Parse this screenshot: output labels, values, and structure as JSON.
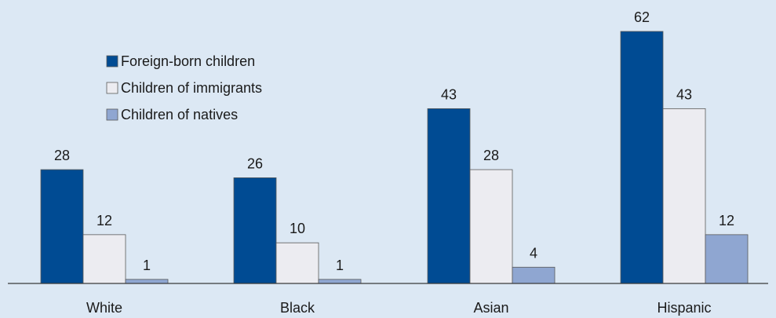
{
  "chart_data": {
    "type": "bar",
    "title": "",
    "xlabel": "",
    "ylabel": "",
    "categories": [
      "White",
      "Black",
      "Asian",
      "Hispanic"
    ],
    "series": [
      {
        "name": "Foreign-born children",
        "values": [
          28,
          26,
          43,
          62
        ],
        "color": "#004b93"
      },
      {
        "name": "Children of immigrants",
        "values": [
          12,
          10,
          28,
          43
        ],
        "color": "#ececf1"
      },
      {
        "name": "Children of natives",
        "values": [
          1,
          1,
          4,
          12
        ],
        "color": "#8fa6d1"
      }
    ],
    "ylim": [
      0,
      62
    ],
    "grid": false,
    "legend_position": "top-left"
  }
}
